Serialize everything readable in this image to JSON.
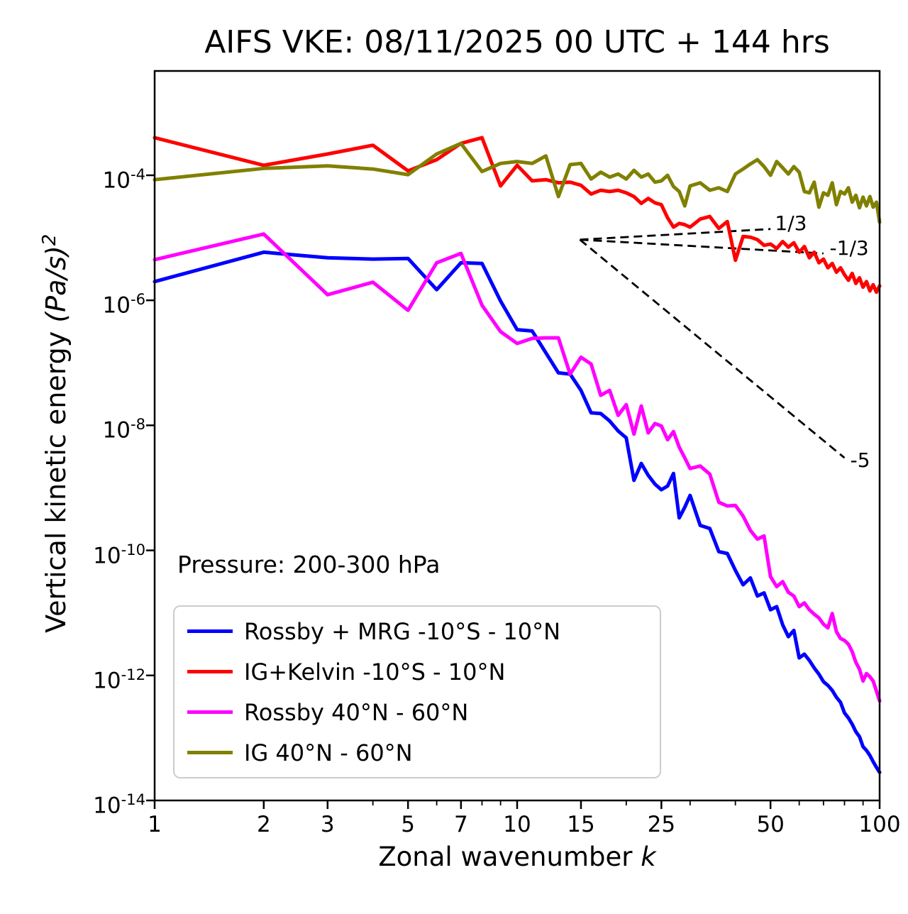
{
  "title": "AIFS VKE: 08/11/2025 00 UTC + 144 hrs",
  "annotation": "Pressure: 200-300 hPa",
  "axes": {
    "xlabel_prefix": "Zonal wavenumber ",
    "xlabel_var": "k",
    "ylabel_prefix": "Vertical kinetic energy ",
    "ylabel_units": "(Pa/s)",
    "ylabel_exp": "2",
    "xlim": [
      1,
      100
    ],
    "ylim_log10": [
      -14,
      -2.33
    ],
    "x_major_ticks": [
      1,
      2,
      3,
      5,
      7,
      10,
      15,
      25,
      50,
      100
    ],
    "x_minor_ticks": [
      4,
      6,
      8,
      9,
      20,
      30,
      40,
      60,
      70,
      80,
      90
    ],
    "y_tick_exponents": [
      -4,
      -6,
      -8,
      -10,
      -12,
      -14
    ],
    "grid": "off",
    "x_scale": "log",
    "y_scale": "log"
  },
  "legend": {
    "position": "lower-left"
  },
  "chart_data": {
    "type": "line",
    "title": "AIFS VKE: 08/11/2025 00 UTC + 144 hrs",
    "xlabel": "Zonal wavenumber k",
    "ylabel": "Vertical kinetic energy (Pa/s)^2",
    "x_scale": "log",
    "y_scale": "log",
    "xlim": [
      1,
      100
    ],
    "ylim": [
      1e-14,
      0.005
    ],
    "series": [
      {
        "name": "Rossby + MRG -10°S - 10°N",
        "color": "#0000ff",
        "points": [
          [
            1,
            -5.7
          ],
          [
            2,
            -5.23
          ],
          [
            3,
            -5.32
          ],
          [
            4,
            -5.34
          ],
          [
            5,
            -5.33
          ],
          [
            6,
            -5.83
          ],
          [
            7,
            -5.4
          ],
          [
            8,
            -5.41
          ],
          [
            9,
            -6.01
          ],
          [
            10,
            -6.47
          ],
          [
            11,
            -6.49
          ],
          [
            12,
            -6.84
          ],
          [
            13,
            -7.16
          ],
          [
            14,
            -7.18
          ],
          [
            15,
            -7.44
          ],
          [
            16,
            -7.8
          ],
          [
            17,
            -7.81
          ],
          [
            18,
            -7.93
          ],
          [
            19,
            -8.09
          ],
          [
            20,
            -8.2
          ],
          [
            21,
            -8.88
          ],
          [
            22,
            -8.61
          ],
          [
            23,
            -8.8
          ],
          [
            24,
            -8.94
          ],
          [
            25,
            -9.03
          ],
          [
            26,
            -8.97
          ],
          [
            27,
            -8.77
          ],
          [
            28,
            -9.48
          ],
          [
            29,
            -9.31
          ],
          [
            30,
            -9.12
          ],
          [
            32,
            -9.6
          ],
          [
            34,
            -9.65
          ],
          [
            36,
            -10.02
          ],
          [
            38,
            -10.05
          ],
          [
            40,
            -10.32
          ],
          [
            42,
            -10.55
          ],
          [
            44,
            -10.44
          ],
          [
            46,
            -10.73
          ],
          [
            48,
            -10.68
          ],
          [
            50,
            -10.95
          ],
          [
            52,
            -10.9
          ],
          [
            54,
            -11.19
          ],
          [
            56,
            -11.38
          ],
          [
            58,
            -11.28
          ],
          [
            60,
            -11.72
          ],
          [
            62,
            -11.66
          ],
          [
            64,
            -11.76
          ],
          [
            66,
            -11.88
          ],
          [
            68,
            -11.98
          ],
          [
            70,
            -12.1
          ],
          [
            72,
            -12.16
          ],
          [
            74,
            -12.24
          ],
          [
            76,
            -12.35
          ],
          [
            78,
            -12.43
          ],
          [
            80,
            -12.6
          ],
          [
            82,
            -12.68
          ],
          [
            84,
            -12.78
          ],
          [
            86,
            -12.9
          ],
          [
            88,
            -12.98
          ],
          [
            90,
            -13.14
          ],
          [
            92,
            -13.2
          ],
          [
            94,
            -13.28
          ],
          [
            96,
            -13.38
          ],
          [
            98,
            -13.47
          ],
          [
            100,
            -13.55
          ]
        ]
      },
      {
        "name": "IG+Kelvin -10°S - 10°N",
        "color": "#ff0000",
        "points": [
          [
            1,
            -3.4
          ],
          [
            2,
            -3.84
          ],
          [
            3,
            -3.66
          ],
          [
            4,
            -3.52
          ],
          [
            5,
            -3.93
          ],
          [
            6,
            -3.75
          ],
          [
            7,
            -3.49
          ],
          [
            8,
            -3.4
          ],
          [
            9,
            -4.17
          ],
          [
            10,
            -3.84
          ],
          [
            11,
            -4.09
          ],
          [
            12,
            -4.07
          ],
          [
            13,
            -4.12
          ],
          [
            14,
            -4.11
          ],
          [
            15,
            -4.16
          ],
          [
            16,
            -4.3
          ],
          [
            17,
            -4.24
          ],
          [
            18,
            -4.26
          ],
          [
            19,
            -4.24
          ],
          [
            20,
            -4.28
          ],
          [
            21,
            -4.34
          ],
          [
            22,
            -4.45
          ],
          [
            23,
            -4.37
          ],
          [
            24,
            -4.44
          ],
          [
            25,
            -4.47
          ],
          [
            26,
            -4.68
          ],
          [
            27,
            -4.83
          ],
          [
            28,
            -4.77
          ],
          [
            29,
            -4.79
          ],
          [
            30,
            -4.83
          ],
          [
            32,
            -4.7
          ],
          [
            34,
            -4.66
          ],
          [
            36,
            -4.85
          ],
          [
            38,
            -4.74
          ],
          [
            40,
            -5.36
          ],
          [
            42,
            -4.98
          ],
          [
            44,
            -4.99
          ],
          [
            46,
            -5.03
          ],
          [
            48,
            -5.12
          ],
          [
            50,
            -5.1
          ],
          [
            52,
            -5.17
          ],
          [
            54,
            -5.06
          ],
          [
            56,
            -5.15
          ],
          [
            58,
            -5.08
          ],
          [
            60,
            -5.23
          ],
          [
            62,
            -5.14
          ],
          [
            64,
            -5.32
          ],
          [
            66,
            -5.23
          ],
          [
            68,
            -5.4
          ],
          [
            70,
            -5.34
          ],
          [
            72,
            -5.48
          ],
          [
            74,
            -5.41
          ],
          [
            76,
            -5.55
          ],
          [
            78,
            -5.48
          ],
          [
            80,
            -5.59
          ],
          [
            82,
            -5.68
          ],
          [
            84,
            -5.57
          ],
          [
            86,
            -5.73
          ],
          [
            88,
            -5.64
          ],
          [
            90,
            -5.79
          ],
          [
            92,
            -5.7
          ],
          [
            94,
            -5.85
          ],
          [
            96,
            -5.75
          ],
          [
            98,
            -5.87
          ],
          [
            100,
            -5.77
          ]
        ]
      },
      {
        "name": "Rossby 40°N - 60°N",
        "color": "#ff00ff",
        "points": [
          [
            1,
            -5.35
          ],
          [
            2,
            -4.94
          ],
          [
            3,
            -5.91
          ],
          [
            4,
            -5.71
          ],
          [
            5,
            -6.16
          ],
          [
            6,
            -5.4
          ],
          [
            7,
            -5.25
          ],
          [
            8,
            -6.08
          ],
          [
            9,
            -6.5
          ],
          [
            10,
            -6.69
          ],
          [
            11,
            -6.61
          ],
          [
            12,
            -6.6
          ],
          [
            13,
            -6.6
          ],
          [
            14,
            -7.18
          ],
          [
            15,
            -6.91
          ],
          [
            16,
            -7.02
          ],
          [
            17,
            -7.52
          ],
          [
            18,
            -7.44
          ],
          [
            19,
            -7.84
          ],
          [
            20,
            -7.67
          ],
          [
            21,
            -8.14
          ],
          [
            22,
            -7.69
          ],
          [
            23,
            -8.12
          ],
          [
            24,
            -7.97
          ],
          [
            25,
            -8.01
          ],
          [
            26,
            -8.23
          ],
          [
            27,
            -8.1
          ],
          [
            28,
            -8.35
          ],
          [
            29,
            -8.52
          ],
          [
            30,
            -8.69
          ],
          [
            32,
            -8.65
          ],
          [
            34,
            -8.78
          ],
          [
            36,
            -9.23
          ],
          [
            38,
            -9.29
          ],
          [
            40,
            -9.28
          ],
          [
            42,
            -9.45
          ],
          [
            44,
            -9.68
          ],
          [
            46,
            -9.82
          ],
          [
            48,
            -9.77
          ],
          [
            50,
            -10.42
          ],
          [
            52,
            -10.58
          ],
          [
            54,
            -10.5
          ],
          [
            56,
            -10.67
          ],
          [
            58,
            -10.73
          ],
          [
            60,
            -10.9
          ],
          [
            62,
            -10.84
          ],
          [
            64,
            -10.95
          ],
          [
            66,
            -11.02
          ],
          [
            68,
            -11.08
          ],
          [
            70,
            -11.18
          ],
          [
            72,
            -11.24
          ],
          [
            74,
            -11.01
          ],
          [
            76,
            -11.3
          ],
          [
            78,
            -11.41
          ],
          [
            80,
            -11.44
          ],
          [
            82,
            -11.5
          ],
          [
            84,
            -11.62
          ],
          [
            86,
            -11.79
          ],
          [
            88,
            -11.9
          ],
          [
            90,
            -12.09
          ],
          [
            92,
            -11.97
          ],
          [
            94,
            -12.02
          ],
          [
            96,
            -12.09
          ],
          [
            98,
            -12.25
          ],
          [
            100,
            -12.41
          ]
        ]
      },
      {
        "name": "IG 40°N - 60°N",
        "color": "#808000",
        "points": [
          [
            1,
            -4.07
          ],
          [
            2,
            -3.89
          ],
          [
            3,
            -3.85
          ],
          [
            4,
            -3.9
          ],
          [
            5,
            -3.99
          ],
          [
            6,
            -3.66
          ],
          [
            7,
            -3.49
          ],
          [
            8,
            -3.94
          ],
          [
            9,
            -3.81
          ],
          [
            10,
            -3.78
          ],
          [
            11,
            -3.81
          ],
          [
            12,
            -3.69
          ],
          [
            13,
            -4.34
          ],
          [
            14,
            -3.83
          ],
          [
            15,
            -3.81
          ],
          [
            16,
            -4.06
          ],
          [
            17,
            -3.95
          ],
          [
            18,
            -4.03
          ],
          [
            19,
            -3.98
          ],
          [
            20,
            -4.06
          ],
          [
            21,
            -3.92
          ],
          [
            22,
            -4.03
          ],
          [
            23,
            -3.98
          ],
          [
            24,
            -4.11
          ],
          [
            25,
            -4.09
          ],
          [
            26,
            -4.0
          ],
          [
            27,
            -4.18
          ],
          [
            28,
            -4.26
          ],
          [
            29,
            -4.49
          ],
          [
            30,
            -4.17
          ],
          [
            32,
            -4.12
          ],
          [
            34,
            -4.24
          ],
          [
            36,
            -4.2
          ],
          [
            38,
            -4.26
          ],
          [
            40,
            -3.98
          ],
          [
            42,
            -3.9
          ],
          [
            44,
            -3.82
          ],
          [
            46,
            -3.75
          ],
          [
            48,
            -3.86
          ],
          [
            50,
            -4.0
          ],
          [
            52,
            -3.78
          ],
          [
            54,
            -3.88
          ],
          [
            56,
            -3.98
          ],
          [
            58,
            -3.86
          ],
          [
            60,
            -3.95
          ],
          [
            62,
            -4.26
          ],
          [
            64,
            -4.28
          ],
          [
            66,
            -4.11
          ],
          [
            68,
            -4.51
          ],
          [
            70,
            -4.28
          ],
          [
            72,
            -4.32
          ],
          [
            74,
            -4.12
          ],
          [
            76,
            -4.47
          ],
          [
            78,
            -4.26
          ],
          [
            80,
            -4.3
          ],
          [
            82,
            -4.2
          ],
          [
            84,
            -4.43
          ],
          [
            86,
            -4.32
          ],
          [
            88,
            -4.52
          ],
          [
            90,
            -4.35
          ],
          [
            92,
            -4.49
          ],
          [
            94,
            -4.34
          ],
          [
            96,
            -4.51
          ],
          [
            98,
            -4.43
          ],
          [
            100,
            -4.75
          ]
        ]
      }
    ],
    "guides": [
      {
        "label": "1/3",
        "from": [
          14.9,
          -5.03
        ],
        "to": [
          50,
          -4.86
        ],
        "label_k": 50.5,
        "label_log": -4.77
      },
      {
        "label": "-1/3",
        "from": [
          14.9,
          -5.03
        ],
        "to": [
          70,
          -5.25
        ],
        "label_k": 71.5,
        "label_log": -5.17
      },
      {
        "label": "-5",
        "from": [
          14.9,
          -5.03
        ],
        "to": [
          80,
          -8.52
        ],
        "label_k": 81.5,
        "label_log": -8.56
      }
    ],
    "values_are": "log10 of VKE in (Pa/s)^2 vs zonal wavenumber k"
  }
}
